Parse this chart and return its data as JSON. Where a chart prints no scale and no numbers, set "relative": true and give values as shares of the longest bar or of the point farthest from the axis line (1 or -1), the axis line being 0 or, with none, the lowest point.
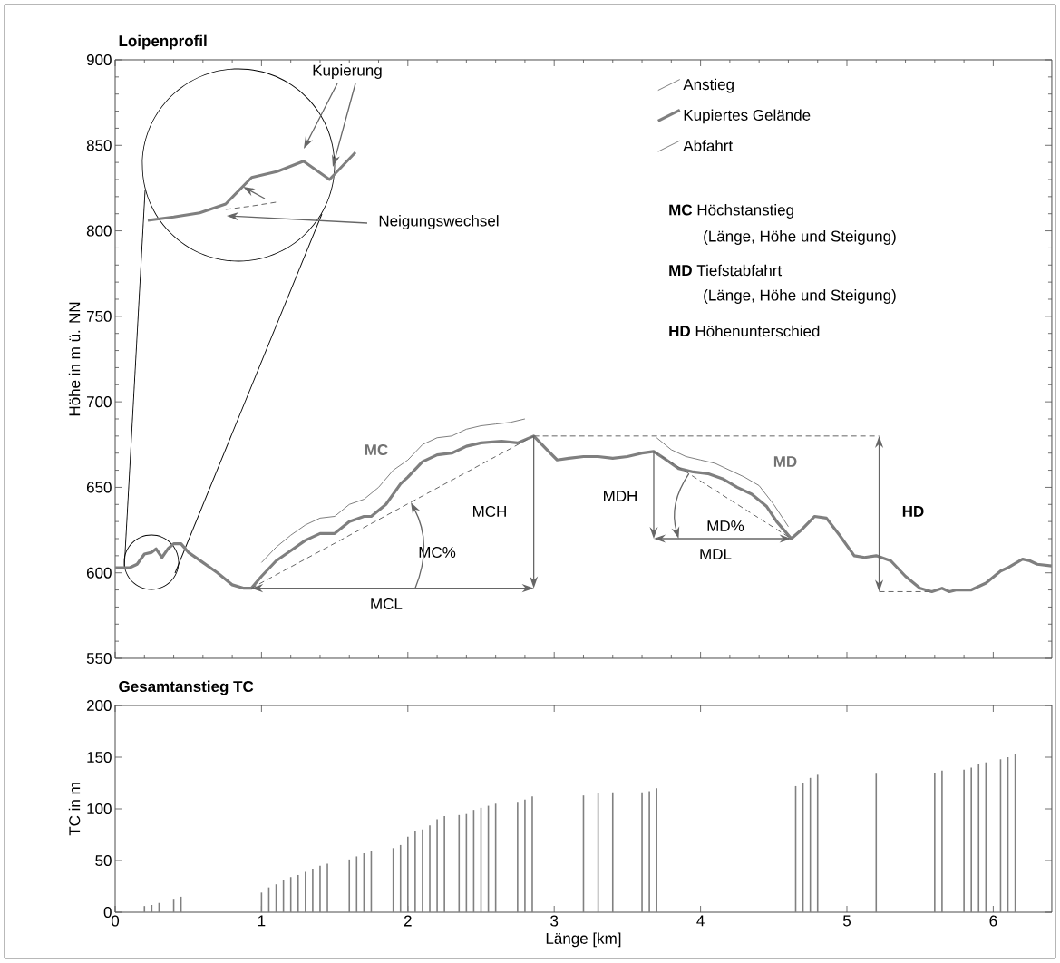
{
  "chart_data": [
    {
      "type": "line",
      "title": "Loipenprofil",
      "ylabel": "Höhe in m ü. NN",
      "xlim": [
        0,
        6.4
      ],
      "ylim": [
        550,
        900
      ],
      "xticks": [
        0,
        1,
        2,
        3,
        4,
        5,
        6
      ],
      "yticks": [
        550,
        600,
        650,
        700,
        750,
        800,
        850,
        900
      ],
      "tick_labels": "y",
      "legend": "top right",
      "series": [
        {
          "name": "Anstieg",
          "color": "#808080",
          "x": [
            1.0,
            1.1,
            1.2,
            1.3,
            1.4,
            1.5,
            1.6,
            1.7,
            1.8,
            1.9,
            2.0,
            2.1,
            2.2,
            2.3,
            2.4,
            2.5,
            2.6,
            2.7,
            2.8
          ],
          "values": [
            606,
            615,
            622,
            628,
            632,
            633,
            640,
            643,
            650,
            660,
            666,
            675,
            679,
            680,
            684,
            686,
            687,
            688,
            690
          ]
        },
        {
          "name": "Kupiertes Gelände",
          "color": "#7f7f7f",
          "x": [
            0,
            0.1,
            0.15,
            0.2,
            0.25,
            0.28,
            0.32,
            0.36,
            0.4,
            0.45,
            0.5,
            0.6,
            0.7,
            0.8,
            0.88,
            0.93,
            1.0,
            1.1,
            1.2,
            1.3,
            1.4,
            1.5,
            1.6,
            1.7,
            1.75,
            1.85,
            1.95,
            2.0,
            2.1,
            2.2,
            2.3,
            2.4,
            2.5,
            2.64,
            2.75,
            2.86,
            2.95,
            3.02,
            3.1,
            3.2,
            3.3,
            3.4,
            3.5,
            3.6,
            3.68,
            3.75,
            3.85,
            3.95,
            4.05,
            4.15,
            4.25,
            4.35,
            4.45,
            4.52,
            4.62,
            4.7,
            4.78,
            4.86,
            4.95,
            5.05,
            5.12,
            5.2,
            5.3,
            5.4,
            5.5,
            5.58,
            5.65,
            5.7,
            5.75,
            5.85,
            5.95,
            6.05,
            6.1,
            6.2,
            6.25,
            6.3,
            6.4
          ],
          "values": [
            603,
            603,
            605,
            611,
            612,
            614,
            609,
            614,
            617,
            617,
            612,
            606,
            600,
            593,
            591,
            591,
            598,
            607,
            613,
            619,
            623,
            623,
            630,
            633,
            633,
            640,
            652,
            656,
            665,
            669,
            670,
            674,
            676,
            677,
            676,
            680,
            672,
            666,
            667,
            668,
            668,
            667,
            668,
            670,
            671,
            667,
            661,
            659,
            658,
            655,
            650,
            646,
            639,
            630,
            620,
            626,
            633,
            632,
            622,
            610,
            609,
            610,
            607,
            598,
            591,
            589,
            591,
            589,
            590,
            590,
            594,
            601,
            603,
            608,
            607,
            605,
            604
          ]
        },
        {
          "name": "Abfahrt",
          "color": "#808080",
          "x": [
            3.7,
            3.8,
            3.9,
            4.0,
            4.1,
            4.2,
            4.3,
            4.4,
            4.5,
            4.6
          ],
          "values": [
            679,
            672,
            668,
            666,
            664,
            660,
            656,
            651,
            640,
            627
          ]
        }
      ],
      "annotations": [
        "Kupierung",
        "Neigungswechsel",
        "**MC** Höchstanstieg",
        "(Länge, Höhe und Steigung)",
        "**MD** Tiefstabfahrt",
        "(Länge, Höhe und Steigung)",
        "**HD** Höhenunterschied",
        "MC",
        "MD",
        "MCH",
        "MCL",
        "MC%",
        "MDH",
        "MDL",
        "MD%",
        "HD"
      ]
    },
    {
      "type": "bar",
      "title": "Gesamtanstieg TC",
      "xlabel": "Länge [km]",
      "ylabel": "TC in m",
      "color": "#808080",
      "xlim": [
        0,
        6.4
      ],
      "ylim": [
        0,
        200
      ],
      "xticks": [
        0,
        1,
        2,
        3,
        4,
        5,
        6
      ],
      "yticks": [
        0,
        50,
        100,
        150,
        200
      ],
      "x": [
        0.2,
        0.25,
        0.3,
        0.4,
        0.45,
        1.0,
        1.05,
        1.1,
        1.15,
        1.2,
        1.25,
        1.3,
        1.35,
        1.4,
        1.45,
        1.6,
        1.65,
        1.7,
        1.75,
        1.9,
        1.95,
        2.0,
        2.05,
        2.1,
        2.15,
        2.2,
        2.25,
        2.35,
        2.4,
        2.45,
        2.5,
        2.55,
        2.6,
        2.75,
        2.8,
        2.85,
        3.2,
        3.3,
        3.4,
        3.6,
        3.65,
        3.7,
        4.65,
        4.7,
        4.75,
        4.8,
        5.2,
        5.6,
        5.65,
        5.8,
        5.85,
        5.9,
        5.95,
        6.05,
        6.1,
        6.15
      ],
      "values": [
        6,
        7,
        9,
        13,
        15,
        19,
        24,
        27,
        31,
        34,
        36,
        39,
        42,
        45,
        47,
        51,
        54,
        57,
        59,
        62,
        65,
        73,
        79,
        80,
        84,
        90,
        93,
        94,
        95,
        99,
        101,
        103,
        105,
        106,
        109,
        112,
        113,
        115,
        116,
        116,
        117,
        120,
        122,
        125,
        130,
        133,
        134,
        135,
        137,
        138,
        140,
        143,
        145,
        148,
        150,
        153
      ]
    },
    {
      "type": "line",
      "relative": true,
      "categories": [
        null,
        null,
        null,
        null,
        null,
        null,
        null,
        null,
        null
      ],
      "series": [
        {
          "color": "#7f7f7f",
          "values": [
            0,
            0.05,
            0.11,
            0.24,
            0.63,
            0.72,
            0.87,
            0.6,
            1
          ]
        },
        {
          "color": "#666666",
          "line_style": "dashed",
          "values": [
            null,
            null,
            null,
            0.16,
            0.21,
            0.27,
            null,
            null,
            null
          ]
        }
      ]
    }
  ]
}
